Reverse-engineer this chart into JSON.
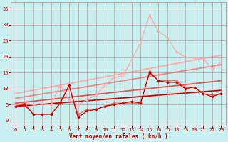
{
  "background_color": "#c8f0f0",
  "grid_color": "#d08080",
  "text_color": "#cc0000",
  "xlabel": "Vent moyen/en rafales ( km/h )",
  "xlim": [
    -0.5,
    23.5
  ],
  "ylim": [
    -1.5,
    37
  ],
  "yticks": [
    0,
    5,
    10,
    15,
    20,
    25,
    30,
    35
  ],
  "xticks": [
    0,
    1,
    2,
    3,
    4,
    5,
    6,
    7,
    8,
    9,
    10,
    11,
    12,
    13,
    14,
    15,
    16,
    17,
    18,
    19,
    20,
    21,
    22,
    23
  ],
  "series": [
    {
      "x": [
        0,
        1,
        2,
        3,
        4,
        5,
        6,
        7,
        8,
        9,
        10,
        11,
        12,
        13,
        14,
        15,
        16,
        17,
        18,
        19,
        20,
        21,
        22,
        23
      ],
      "y": [
        5.0,
        5.5,
        5.0,
        5.5,
        5.0,
        11.0,
        6.5,
        5.0,
        6.5,
        8.0,
        11.0,
        13.5,
        14.0,
        19.0,
        24.5,
        33.0,
        28.0,
        26.0,
        21.5,
        20.0,
        19.5,
        19.5,
        16.0,
        18.5
      ],
      "color": "#ffaaaa",
      "lw": 0.9,
      "marker": "D",
      "ms": 2.2,
      "zorder": 2
    },
    {
      "x": [
        0,
        1,
        2,
        3,
        4,
        5,
        6,
        7,
        8,
        9,
        10,
        11,
        12,
        13,
        14,
        15,
        16,
        17,
        18,
        19,
        20,
        21,
        22,
        23
      ],
      "y": [
        4.5,
        5.5,
        2.0,
        2.0,
        2.0,
        5.5,
        11.0,
        2.0,
        3.5,
        3.5,
        4.5,
        5.5,
        5.5,
        5.5,
        5.5,
        15.5,
        12.5,
        12.5,
        12.5,
        10.5,
        10.5,
        8.5,
        8.0,
        8.5
      ],
      "color": "#ee6666",
      "lw": 0.9,
      "marker": "D",
      "ms": 2.2,
      "zorder": 3
    },
    {
      "x": [
        0,
        1,
        2,
        3,
        4,
        5,
        6,
        7,
        8,
        9,
        10,
        11,
        12,
        13,
        14,
        15,
        16,
        17,
        18,
        19,
        20,
        21,
        22,
        23
      ],
      "y": [
        4.5,
        5.0,
        2.0,
        2.0,
        2.0,
        5.5,
        11.0,
        1.0,
        3.0,
        3.5,
        4.5,
        5.0,
        5.5,
        6.0,
        5.5,
        15.0,
        12.5,
        12.0,
        12.0,
        10.0,
        10.5,
        8.5,
        7.5,
        8.5
      ],
      "color": "#cc0000",
      "lw": 0.9,
      "marker": "D",
      "ms": 2.2,
      "zorder": 4
    },
    {
      "x": [
        0,
        23
      ],
      "y": [
        8.5,
        20.5
      ],
      "color": "#ffaaaa",
      "lw": 1.3,
      "marker": null,
      "ms": 0,
      "zorder": 1
    },
    {
      "x": [
        0,
        23
      ],
      "y": [
        7.0,
        17.5
      ],
      "color": "#ee8888",
      "lw": 1.3,
      "marker": null,
      "ms": 0,
      "zorder": 1
    },
    {
      "x": [
        0,
        23
      ],
      "y": [
        5.5,
        12.5
      ],
      "color": "#dd5555",
      "lw": 1.3,
      "marker": null,
      "ms": 0,
      "zorder": 1
    },
    {
      "x": [
        0,
        23
      ],
      "y": [
        4.5,
        9.5
      ],
      "color": "#cc0000",
      "lw": 1.3,
      "marker": null,
      "ms": 0,
      "zorder": 1
    }
  ]
}
